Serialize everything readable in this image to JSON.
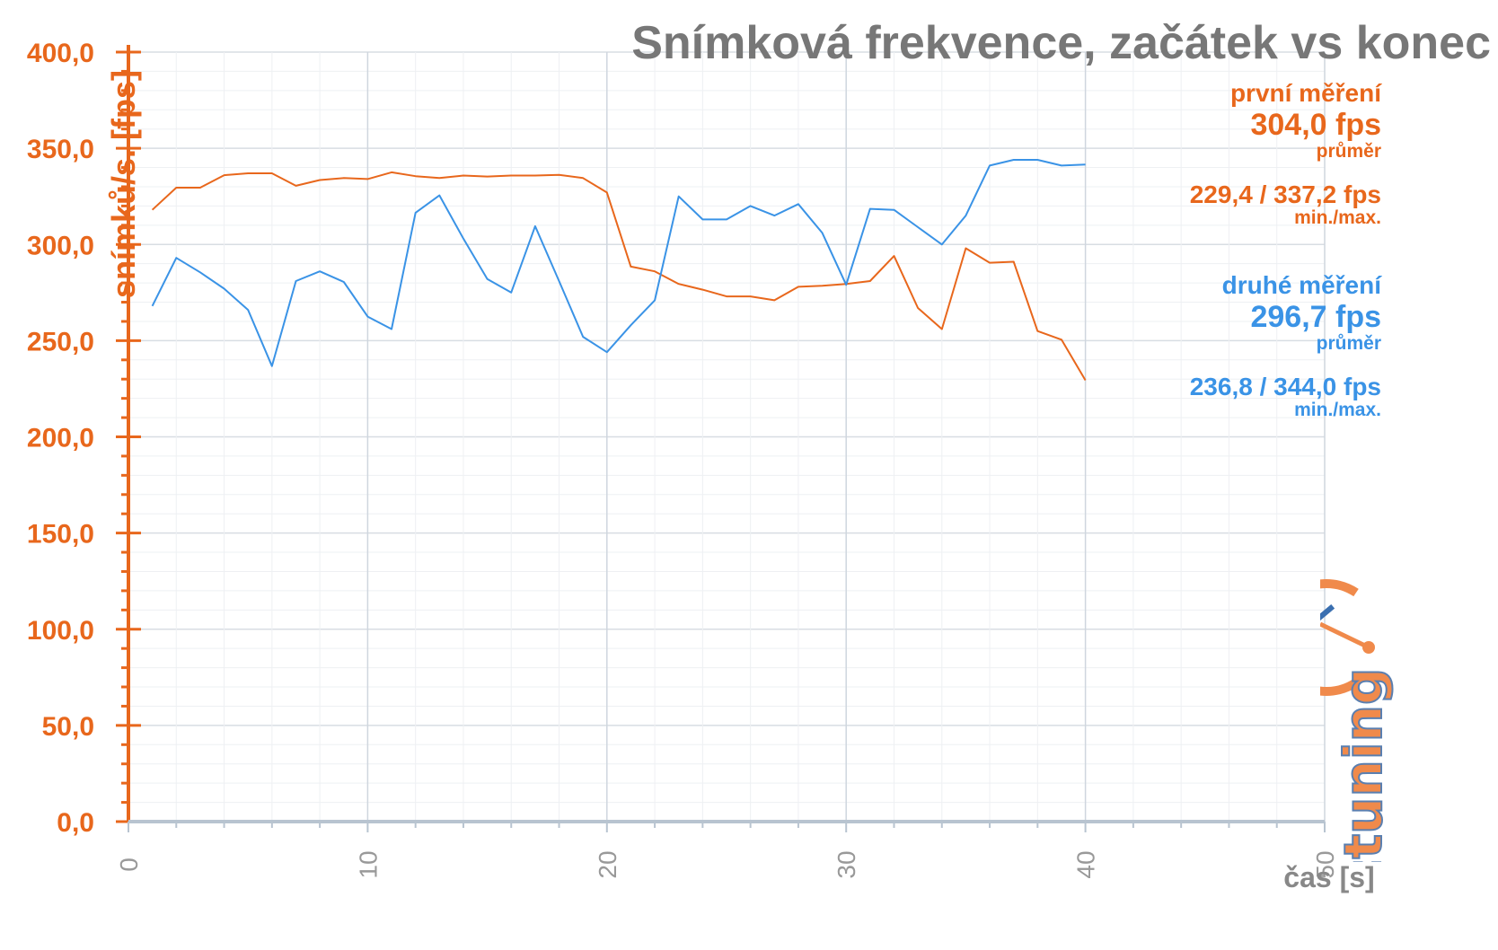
{
  "chart_data": {
    "type": "line",
    "title": "Snímková frekvence, začátek vs konec",
    "xlabel": "čas [s]",
    "ylabel": "snímků/s. [fps]",
    "xlim": [
      0,
      50
    ],
    "ylim": [
      0,
      400
    ],
    "x_ticks": [
      "0",
      "10",
      "20",
      "30",
      "40",
      "50"
    ],
    "y_ticks": [
      "0,0",
      "50,0",
      "100,0",
      "150,0",
      "200,0",
      "250,0",
      "300,0",
      "350,0",
      "400,0"
    ],
    "grid": true,
    "x": [
      1,
      2,
      3,
      4,
      5,
      6,
      7,
      8,
      9,
      10,
      11,
      12,
      13,
      14,
      15,
      16,
      17,
      18,
      19,
      20,
      21,
      22,
      23,
      24,
      25,
      26,
      27,
      28,
      29,
      30,
      31,
      32,
      33,
      34,
      35,
      36,
      37,
      38,
      39,
      40
    ],
    "series": [
      {
        "name": "první měření",
        "color": "#e8671c",
        "values": [
          318.0,
          329.5,
          329.5,
          336.0,
          337.0,
          337.0,
          330.5,
          333.5,
          334.5,
          334.0,
          337.5,
          335.5,
          334.5,
          335.8,
          335.3,
          335.8,
          335.8,
          336.2,
          334.5,
          327.0,
          288.5,
          286.0,
          279.5,
          276.5,
          273.0,
          273.0,
          271.0,
          278.0,
          278.5,
          279.5,
          281.0,
          294.0,
          267.0,
          256.0,
          298.0,
          290.5,
          291.0,
          255.0,
          250.5,
          229.4
        ],
        "avg": "304,0 fps",
        "avg_label": "průměr",
        "minmax": "229,4 / 337,2 fps",
        "minmax_label": "min./max."
      },
      {
        "name": "druhé měření",
        "color": "#3a93e6",
        "values": [
          268.0,
          293.0,
          285.5,
          277.0,
          266.0,
          236.8,
          281.0,
          286.0,
          280.5,
          262.5,
          256.0,
          316.5,
          325.5,
          303.0,
          282.0,
          275.0,
          309.5,
          281.0,
          252.0,
          244.0,
          258.0,
          271.0,
          325.0,
          313.0,
          313.0,
          320.0,
          315.0,
          321.0,
          306.0,
          279.0,
          318.5,
          318.0,
          309.0,
          300.0,
          315.0,
          341.0,
          344.0,
          344.0,
          341.0,
          341.5
        ],
        "avg": "296,7 fps",
        "avg_label": "průměr",
        "minmax": "236,8 / 344,0 fps",
        "minmax_label": "min./max."
      }
    ]
  },
  "brand": "pctuning"
}
